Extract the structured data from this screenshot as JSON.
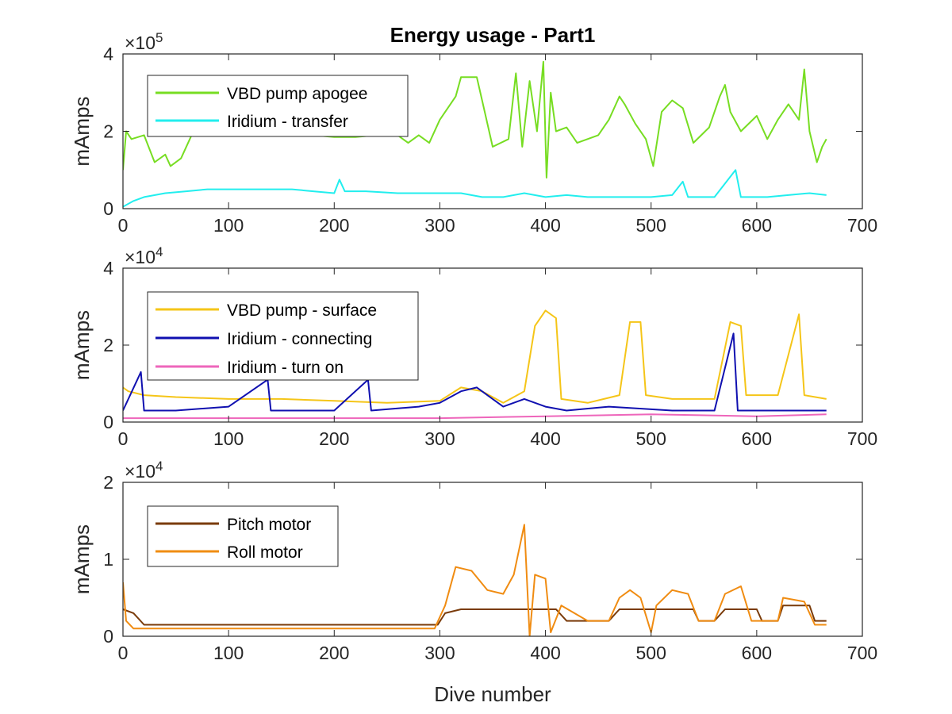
{
  "figure_title": "Energy usage - Part1",
  "xlabel": "Dive number",
  "chart_data": [
    {
      "type": "line",
      "ylabel": "mAmps",
      "y_exponent": "5",
      "y_multiplier_label": "×10",
      "xlim": [
        0,
        700
      ],
      "ylim": [
        0,
        4
      ],
      "xticks": [
        "0",
        "100",
        "200",
        "300",
        "400",
        "500",
        "600",
        "700"
      ],
      "yticks": [
        "0",
        "2",
        "4"
      ],
      "ytick_values": [
        0,
        2,
        4
      ],
      "legend_position": "top-left",
      "series": [
        {
          "name": "VBD pump apogee",
          "color": "#77dd22",
          "points": [
            [
              0,
              1.0
            ],
            [
              3,
              2.0
            ],
            [
              8,
              1.8
            ],
            [
              20,
              1.9
            ],
            [
              30,
              1.2
            ],
            [
              40,
              1.4
            ],
            [
              45,
              1.1
            ],
            [
              55,
              1.3
            ],
            [
              65,
              1.9
            ],
            [
              75,
              2.0
            ],
            [
              100,
              2.05
            ],
            [
              120,
              2.0
            ],
            [
              140,
              1.95
            ],
            [
              160,
              1.95
            ],
            [
              180,
              1.9
            ],
            [
              200,
              1.85
            ],
            [
              220,
              1.85
            ],
            [
              240,
              1.9
            ],
            [
              260,
              1.9
            ],
            [
              270,
              1.7
            ],
            [
              280,
              1.9
            ],
            [
              290,
              1.7
            ],
            [
              300,
              2.3
            ],
            [
              315,
              2.9
            ],
            [
              320,
              3.4
            ],
            [
              335,
              3.4
            ],
            [
              340,
              2.8
            ],
            [
              350,
              1.6
            ],
            [
              365,
              1.8
            ],
            [
              372,
              3.5
            ],
            [
              378,
              1.6
            ],
            [
              385,
              3.3
            ],
            [
              392,
              2.0
            ],
            [
              398,
              3.8
            ],
            [
              401,
              0.8
            ],
            [
              405,
              3.0
            ],
            [
              410,
              2.0
            ],
            [
              420,
              2.1
            ],
            [
              430,
              1.7
            ],
            [
              450,
              1.9
            ],
            [
              460,
              2.3
            ],
            [
              470,
              2.9
            ],
            [
              475,
              2.7
            ],
            [
              485,
              2.2
            ],
            [
              495,
              1.8
            ],
            [
              502,
              1.1
            ],
            [
              510,
              2.5
            ],
            [
              520,
              2.8
            ],
            [
              530,
              2.6
            ],
            [
              540,
              1.7
            ],
            [
              555,
              2.1
            ],
            [
              565,
              2.9
            ],
            [
              570,
              3.2
            ],
            [
              575,
              2.5
            ],
            [
              585,
              2.0
            ],
            [
              600,
              2.4
            ],
            [
              610,
              1.8
            ],
            [
              620,
              2.3
            ],
            [
              630,
              2.7
            ],
            [
              640,
              2.3
            ],
            [
              645,
              3.6
            ],
            [
              650,
              2.0
            ],
            [
              657,
              1.2
            ],
            [
              662,
              1.6
            ],
            [
              666,
              1.8
            ]
          ]
        },
        {
          "name": "Iridium - transfer",
          "color": "#22eeee",
          "points": [
            [
              0,
              0.05
            ],
            [
              10,
              0.2
            ],
            [
              20,
              0.3
            ],
            [
              40,
              0.4
            ],
            [
              60,
              0.45
            ],
            [
              80,
              0.5
            ],
            [
              100,
              0.5
            ],
            [
              120,
              0.5
            ],
            [
              140,
              0.5
            ],
            [
              160,
              0.5
            ],
            [
              180,
              0.45
            ],
            [
              200,
              0.4
            ],
            [
              205,
              0.75
            ],
            [
              210,
              0.45
            ],
            [
              230,
              0.45
            ],
            [
              260,
              0.4
            ],
            [
              290,
              0.4
            ],
            [
              300,
              0.4
            ],
            [
              320,
              0.4
            ],
            [
              340,
              0.3
            ],
            [
              360,
              0.3
            ],
            [
              380,
              0.4
            ],
            [
              400,
              0.3
            ],
            [
              420,
              0.35
            ],
            [
              440,
              0.3
            ],
            [
              460,
              0.3
            ],
            [
              480,
              0.3
            ],
            [
              500,
              0.3
            ],
            [
              520,
              0.35
            ],
            [
              530,
              0.7
            ],
            [
              535,
              0.3
            ],
            [
              560,
              0.3
            ],
            [
              580,
              1.0
            ],
            [
              585,
              0.3
            ],
            [
              610,
              0.3
            ],
            [
              630,
              0.35
            ],
            [
              650,
              0.4
            ],
            [
              666,
              0.35
            ]
          ]
        }
      ]
    },
    {
      "type": "line",
      "ylabel": "mAmps",
      "y_exponent": "4",
      "y_multiplier_label": "×10",
      "xlim": [
        0,
        700
      ],
      "ylim": [
        0,
        4
      ],
      "xticks": [
        "0",
        "100",
        "200",
        "300",
        "400",
        "500",
        "600",
        "700"
      ],
      "yticks": [
        "0",
        "2",
        "4"
      ],
      "ytick_values": [
        0,
        2,
        4
      ],
      "legend_position": "top-left",
      "series": [
        {
          "name": "VBD pump - surface",
          "color": "#f5c518",
          "points": [
            [
              0,
              0.9
            ],
            [
              5,
              0.8
            ],
            [
              20,
              0.7
            ],
            [
              50,
              0.65
            ],
            [
              100,
              0.6
            ],
            [
              150,
              0.6
            ],
            [
              200,
              0.55
            ],
            [
              250,
              0.5
            ],
            [
              300,
              0.55
            ],
            [
              320,
              0.9
            ],
            [
              340,
              0.8
            ],
            [
              360,
              0.5
            ],
            [
              380,
              0.8
            ],
            [
              390,
              2.5
            ],
            [
              400,
              2.9
            ],
            [
              410,
              2.7
            ],
            [
              415,
              0.6
            ],
            [
              440,
              0.5
            ],
            [
              470,
              0.7
            ],
            [
              480,
              2.6
            ],
            [
              490,
              2.6
            ],
            [
              495,
              0.7
            ],
            [
              520,
              0.6
            ],
            [
              560,
              0.6
            ],
            [
              575,
              2.6
            ],
            [
              585,
              2.5
            ],
            [
              590,
              0.7
            ],
            [
              620,
              0.7
            ],
            [
              640,
              2.8
            ],
            [
              645,
              0.7
            ],
            [
              666,
              0.6
            ]
          ]
        },
        {
          "name": "Iridium - connecting",
          "color": "#1010b0",
          "points": [
            [
              0,
              0.3
            ],
            [
              17,
              1.3
            ],
            [
              20,
              0.3
            ],
            [
              50,
              0.3
            ],
            [
              100,
              0.4
            ],
            [
              137,
              1.1
            ],
            [
              140,
              0.3
            ],
            [
              200,
              0.3
            ],
            [
              232,
              1.1
            ],
            [
              235,
              0.3
            ],
            [
              280,
              0.4
            ],
            [
              300,
              0.5
            ],
            [
              320,
              0.8
            ],
            [
              335,
              0.9
            ],
            [
              360,
              0.4
            ],
            [
              380,
              0.6
            ],
            [
              400,
              0.4
            ],
            [
              420,
              0.3
            ],
            [
              460,
              0.4
            ],
            [
              520,
              0.3
            ],
            [
              560,
              0.3
            ],
            [
              578,
              2.3
            ],
            [
              582,
              0.3
            ],
            [
              620,
              0.3
            ],
            [
              666,
              0.3
            ]
          ]
        },
        {
          "name": "Iridium - turn on",
          "color": "#ee66bb",
          "points": [
            [
              0,
              0.1
            ],
            [
              50,
              0.1
            ],
            [
              100,
              0.1
            ],
            [
              200,
              0.1
            ],
            [
              300,
              0.1
            ],
            [
              400,
              0.15
            ],
            [
              500,
              0.2
            ],
            [
              600,
              0.15
            ],
            [
              666,
              0.2
            ]
          ]
        }
      ]
    },
    {
      "type": "line",
      "ylabel": "mAmps",
      "y_exponent": "4",
      "y_multiplier_label": "×10",
      "xlim": [
        0,
        700
      ],
      "ylim": [
        0,
        2
      ],
      "xticks": [
        "0",
        "100",
        "200",
        "300",
        "400",
        "500",
        "600",
        "700"
      ],
      "yticks": [
        "0",
        "1",
        "2"
      ],
      "ytick_values": [
        0,
        1,
        2
      ],
      "legend_position": "top-left",
      "series": [
        {
          "name": "Pitch motor",
          "color": "#7a3b0a",
          "points": [
            [
              0,
              0.35
            ],
            [
              10,
              0.3
            ],
            [
              20,
              0.15
            ],
            [
              50,
              0.15
            ],
            [
              100,
              0.15
            ],
            [
              150,
              0.15
            ],
            [
              200,
              0.15
            ],
            [
              250,
              0.15
            ],
            [
              298,
              0.15
            ],
            [
              305,
              0.3
            ],
            [
              320,
              0.35
            ],
            [
              380,
              0.35
            ],
            [
              410,
              0.35
            ],
            [
              420,
              0.2
            ],
            [
              460,
              0.2
            ],
            [
              470,
              0.35
            ],
            [
              540,
              0.35
            ],
            [
              545,
              0.2
            ],
            [
              560,
              0.2
            ],
            [
              570,
              0.35
            ],
            [
              600,
              0.35
            ],
            [
              605,
              0.2
            ],
            [
              620,
              0.2
            ],
            [
              625,
              0.4
            ],
            [
              650,
              0.4
            ],
            [
              655,
              0.2
            ],
            [
              666,
              0.2
            ]
          ]
        },
        {
          "name": "Roll motor",
          "color": "#f08c12",
          "points": [
            [
              0,
              0.7
            ],
            [
              3,
              0.2
            ],
            [
              10,
              0.1
            ],
            [
              50,
              0.1
            ],
            [
              100,
              0.1
            ],
            [
              150,
              0.1
            ],
            [
              200,
              0.1
            ],
            [
              250,
              0.1
            ],
            [
              295,
              0.1
            ],
            [
              305,
              0.4
            ],
            [
              315,
              0.9
            ],
            [
              330,
              0.85
            ],
            [
              345,
              0.6
            ],
            [
              360,
              0.55
            ],
            [
              370,
              0.8
            ],
            [
              380,
              1.45
            ],
            [
              385,
              0.0
            ],
            [
              390,
              0.8
            ],
            [
              400,
              0.75
            ],
            [
              405,
              0.05
            ],
            [
              415,
              0.4
            ],
            [
              440,
              0.2
            ],
            [
              460,
              0.2
            ],
            [
              470,
              0.5
            ],
            [
              480,
              0.6
            ],
            [
              490,
              0.5
            ],
            [
              500,
              0.05
            ],
            [
              505,
              0.4
            ],
            [
              520,
              0.6
            ],
            [
              535,
              0.55
            ],
            [
              545,
              0.2
            ],
            [
              560,
              0.2
            ],
            [
              570,
              0.55
            ],
            [
              585,
              0.65
            ],
            [
              595,
              0.2
            ],
            [
              620,
              0.2
            ],
            [
              625,
              0.5
            ],
            [
              645,
              0.45
            ],
            [
              655,
              0.15
            ],
            [
              666,
              0.15
            ]
          ]
        }
      ]
    }
  ]
}
